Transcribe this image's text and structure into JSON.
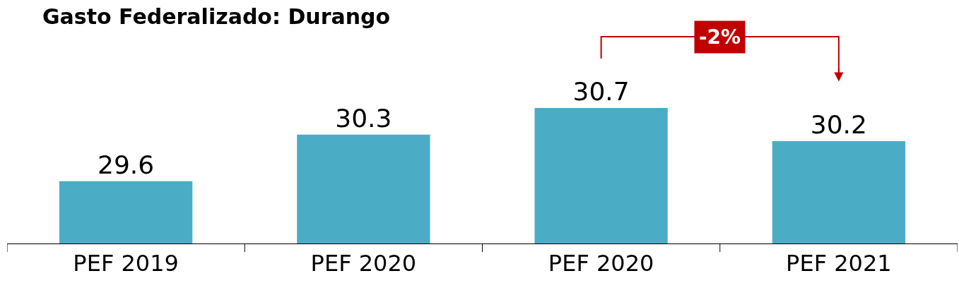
{
  "chart_data": {
    "type": "bar",
    "title": "Gasto Federalizado: Durango",
    "categories": [
      "PEF 2019",
      "PEF 2020",
      "PEF 2020",
      "PEF 2021"
    ],
    "values": [
      29.6,
      30.3,
      30.7,
      30.2
    ],
    "color": "#4bacc6",
    "data_labels": true,
    "tick_labels": "x",
    "annotations": [
      "-2%"
    ]
  }
}
